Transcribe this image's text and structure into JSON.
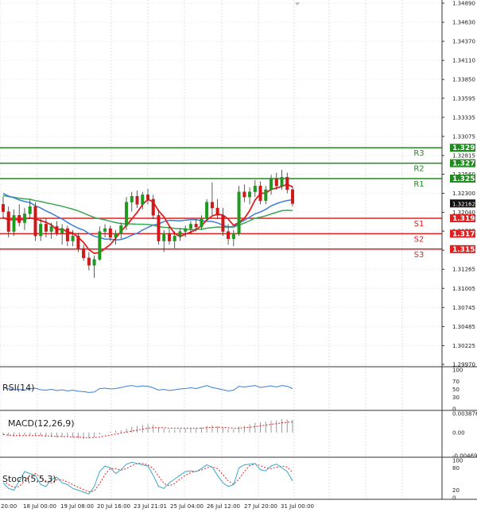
{
  "chart_data": {
    "type": "candlestick",
    "price": {
      "ylim": [
        1.2997,
        1.3489
      ],
      "tick_labels": [
        "1.34890",
        "1.34630",
        "1.34370",
        "1.34110",
        "1.33850",
        "1.33595",
        "1.33335",
        "1.33075",
        "1.32815",
        "1.32560",
        "1.32300",
        "1.32040",
        "1.31785",
        "1.31525",
        "1.31265",
        "1.31005",
        "1.30745",
        "1.30485",
        "1.30225",
        "1.29970"
      ],
      "tick_values": [
        1.3489,
        1.3463,
        1.3437,
        1.3411,
        1.3385,
        1.33595,
        1.33335,
        1.33075,
        1.32815,
        1.3256,
        1.323,
        1.3204,
        1.31785,
        1.31525,
        1.31265,
        1.31005,
        1.30745,
        1.30485,
        1.30225,
        1.2997
      ],
      "current_label": "1.32162",
      "current_value": 1.32162,
      "levels": [
        {
          "name": "R3",
          "label": "1.32920",
          "value": 1.3292,
          "color": "#1e8c1e"
        },
        {
          "name": "R2",
          "label": "1.32710",
          "value": 1.3271,
          "color": "#1e8c1e"
        },
        {
          "name": "R1",
          "label": "1.32500",
          "value": 1.325,
          "color": "#1e8c1e"
        },
        {
          "name": "S1",
          "label": "1.31960",
          "value": 1.3196,
          "color": "#e02020"
        },
        {
          "name": "S2",
          "label": "1.31750",
          "value": 1.3175,
          "color": "#e02020"
        },
        {
          "name": "S3",
          "label": "1.31540",
          "value": 1.3154,
          "color": "#e02020"
        }
      ],
      "candles": [
        [
          1.3215,
          1.3226,
          1.3195,
          1.3205
        ],
        [
          1.3205,
          1.3212,
          1.317,
          1.3178
        ],
        [
          1.3178,
          1.3208,
          1.3172,
          1.32
        ],
        [
          1.32,
          1.3215,
          1.3185,
          1.319
        ],
        [
          1.319,
          1.321,
          1.318,
          1.3202
        ],
        [
          1.3202,
          1.3222,
          1.3195,
          1.3212
        ],
        [
          1.3212,
          1.3218,
          1.3165,
          1.3172
        ],
        [
          1.3172,
          1.3195,
          1.3165,
          1.3188
        ],
        [
          1.3188,
          1.3196,
          1.317,
          1.3178
        ],
        [
          1.3178,
          1.319,
          1.3168,
          1.3185
        ],
        [
          1.3185,
          1.3192,
          1.3172,
          1.3176
        ],
        [
          1.3176,
          1.3188,
          1.316,
          1.3182
        ],
        [
          1.3182,
          1.3186,
          1.3158,
          1.3165
        ],
        [
          1.3165,
          1.318,
          1.3158,
          1.3172
        ],
        [
          1.3172,
          1.3176,
          1.315,
          1.3155
        ],
        [
          1.3155,
          1.316,
          1.3138,
          1.3142
        ],
        [
          1.3142,
          1.315,
          1.3125,
          1.3132
        ],
        [
          1.3132,
          1.3145,
          1.3115,
          1.314
        ],
        [
          1.314,
          1.3185,
          1.3138,
          1.3178
        ],
        [
          1.3178,
          1.3188,
          1.317,
          1.3182
        ],
        [
          1.3182,
          1.3186,
          1.3165,
          1.317
        ],
        [
          1.317,
          1.318,
          1.316,
          1.3175
        ],
        [
          1.3175,
          1.319,
          1.3168,
          1.3186
        ],
        [
          1.3186,
          1.3225,
          1.318,
          1.3218
        ],
        [
          1.3218,
          1.3232,
          1.3205,
          1.3226
        ],
        [
          1.3226,
          1.3234,
          1.321,
          1.3215
        ],
        [
          1.3215,
          1.3232,
          1.3208,
          1.3228
        ],
        [
          1.3228,
          1.3236,
          1.3215,
          1.3222
        ],
        [
          1.3222,
          1.3228,
          1.3195,
          1.32
        ],
        [
          1.32,
          1.3208,
          1.316,
          1.3165
        ],
        [
          1.3165,
          1.318,
          1.315,
          1.3175
        ],
        [
          1.3175,
          1.3185,
          1.316,
          1.3165
        ],
        [
          1.3165,
          1.3178,
          1.3155,
          1.3172
        ],
        [
          1.3172,
          1.3182,
          1.3165,
          1.3178
        ],
        [
          1.3178,
          1.3186,
          1.317,
          1.3182
        ],
        [
          1.3182,
          1.3192,
          1.3175,
          1.3188
        ],
        [
          1.3188,
          1.3195,
          1.3178,
          1.3184
        ],
        [
          1.3184,
          1.32,
          1.318,
          1.3196
        ],
        [
          1.3196,
          1.3222,
          1.3192,
          1.3218
        ],
        [
          1.3218,
          1.3245,
          1.32,
          1.321
        ],
        [
          1.321,
          1.3222,
          1.3195,
          1.32
        ],
        [
          1.32,
          1.321,
          1.3172,
          1.3178
        ],
        [
          1.3178,
          1.3188,
          1.316,
          1.3168
        ],
        [
          1.3168,
          1.318,
          1.3158,
          1.3175
        ],
        [
          1.3175,
          1.324,
          1.3172,
          1.3232
        ],
        [
          1.3232,
          1.3242,
          1.3218,
          1.3225
        ],
        [
          1.3225,
          1.3238,
          1.3215,
          1.3232
        ],
        [
          1.3232,
          1.3248,
          1.3225,
          1.324
        ],
        [
          1.324,
          1.3246,
          1.3215,
          1.322
        ],
        [
          1.322,
          1.324,
          1.3215,
          1.3235
        ],
        [
          1.3235,
          1.3255,
          1.3228,
          1.325
        ],
        [
          1.325,
          1.3258,
          1.3235,
          1.324
        ],
        [
          1.324,
          1.3262,
          1.3235,
          1.3252
        ],
        [
          1.3252,
          1.3258,
          1.323,
          1.3235
        ],
        [
          1.3235,
          1.324,
          1.3212,
          1.3216
        ]
      ]
    },
    "indicators": [
      {
        "name": "RSI(14)",
        "ticks": [
          "100",
          "70",
          "50",
          "30",
          "0"
        ],
        "tick_values": [
          100,
          70,
          50,
          30,
          0
        ],
        "values": [
          55,
          52,
          49,
          50,
          48,
          51,
          53,
          49,
          48,
          50,
          47,
          49,
          46,
          48,
          45,
          44,
          42,
          43,
          52,
          53,
          51,
          52,
          55,
          58,
          60,
          57,
          59,
          58,
          54,
          48,
          50,
          47,
          49,
          51,
          52,
          54,
          52,
          56,
          60,
          55,
          52,
          49,
          46,
          48,
          58,
          56,
          58,
          60,
          55,
          57,
          59,
          56,
          60,
          58,
          52
        ]
      },
      {
        "name": "MACD(12,26,9)",
        "ticks": [
          "0.003876",
          "0.00",
          "-0.004694"
        ],
        "tick_values": [
          0.003876,
          0,
          -0.004694
        ],
        "histogram": [
          -0.0006,
          -0.0007,
          -0.0008,
          -0.0007,
          -0.0006,
          -0.0005,
          -0.0006,
          -0.0007,
          -0.0008,
          -0.0009,
          -0.001,
          -0.0009,
          -0.0008,
          -0.001,
          -0.0012,
          -0.0013,
          -0.0012,
          -0.001,
          -0.0004,
          0.0,
          0.0002,
          0.0004,
          0.0005,
          0.0008,
          0.0012,
          0.0014,
          0.0016,
          0.0017,
          0.0016,
          0.001,
          0.0008,
          0.0006,
          0.0006,
          0.0007,
          0.0008,
          0.0009,
          0.0009,
          0.0011,
          0.0014,
          0.0015,
          0.0013,
          0.001,
          0.0007,
          0.0007,
          0.0012,
          0.0014,
          0.0017,
          0.002,
          0.0021,
          0.0022,
          0.0024,
          0.0025,
          0.0027,
          0.0027,
          0.0026
        ],
        "signal": [
          -0.0004,
          -0.0005,
          -0.0006,
          -0.0006,
          -0.0006,
          -0.0006,
          -0.0006,
          -0.0006,
          -0.0007,
          -0.0007,
          -0.0008,
          -0.0008,
          -0.0008,
          -0.0009,
          -0.0009,
          -0.001,
          -0.001,
          -0.001,
          -0.0009,
          -0.0007,
          -0.0005,
          -0.0003,
          -0.0001,
          0.0001,
          0.0003,
          0.0005,
          0.0007,
          0.0009,
          0.001,
          0.001,
          0.001,
          0.0009,
          0.0009,
          0.0009,
          0.0009,
          0.0009,
          0.0009,
          0.0009,
          0.001,
          0.0011,
          0.0011,
          0.0011,
          0.001,
          0.0009,
          0.0009,
          0.001,
          0.0011,
          0.0012,
          0.0014,
          0.0015,
          0.0017,
          0.0018,
          0.002,
          0.0021,
          0.0022
        ]
      },
      {
        "name": "Stoch(5,5,3)",
        "ticks": [
          "100",
          "80",
          "20",
          "0"
        ],
        "tick_values": [
          100,
          80,
          20,
          0
        ],
        "k": [
          40,
          25,
          20,
          45,
          70,
          65,
          60,
          35,
          30,
          50,
          55,
          40,
          35,
          25,
          20,
          15,
          10,
          30,
          70,
          85,
          80,
          65,
          75,
          90,
          95,
          92,
          88,
          85,
          60,
          30,
          25,
          40,
          50,
          60,
          70,
          72,
          70,
          78,
          88,
          82,
          60,
          40,
          30,
          35,
          80,
          88,
          90,
          92,
          75,
          72,
          85,
          90,
          80,
          70,
          45
        ],
        "d": [
          45,
          35,
          28,
          30,
          45,
          60,
          65,
          55,
          42,
          40,
          48,
          48,
          42,
          35,
          28,
          22,
          16,
          18,
          38,
          62,
          78,
          78,
          74,
          78,
          86,
          92,
          92,
          88,
          78,
          58,
          38,
          32,
          38,
          50,
          60,
          67,
          71,
          74,
          80,
          83,
          78,
          62,
          45,
          36,
          50,
          70,
          86,
          90,
          86,
          80,
          78,
          82,
          85,
          82,
          68
        ]
      }
    ],
    "time_labels": [
      "20:00",
      "18 Jul 00:00",
      "19 Jul 08:00",
      "20 Jul 16:00",
      "23 Jul 21:01",
      "25 Jul 04:00",
      "26 Jul 12:00",
      "27 Jul 20:00",
      "31 Jul 00:00"
    ],
    "colors": {
      "bull": "#1e9a1e",
      "bear": "#d01818",
      "ma_fast": "#e02020",
      "ma_mid": "#3a7fd6",
      "ma_slow": "#3aa655",
      "rsi": "#3a7fd6",
      "macd_hist": "#999999",
      "macd_signal": "#e02020",
      "stoch_k": "#3aa6c8",
      "stoch_d": "#e02020"
    }
  }
}
